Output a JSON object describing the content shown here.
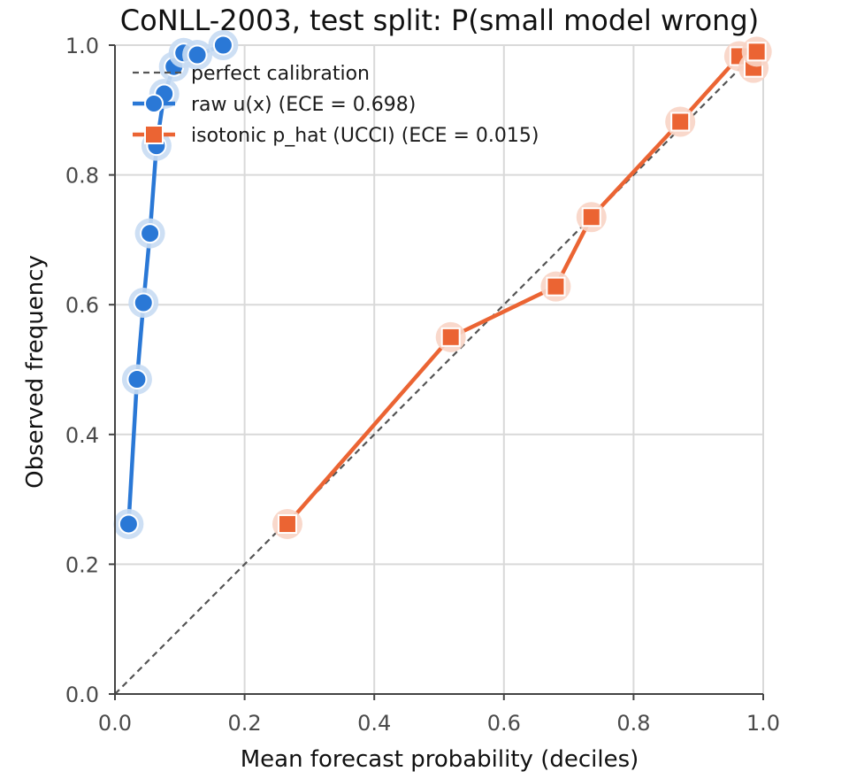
{
  "chart_data": {
    "type": "line",
    "title": "CoNLL-2003, test split: P(small model wrong)",
    "xlabel": "Mean forecast probability (deciles)",
    "ylabel": "Observed frequency",
    "xlim": [
      0,
      1
    ],
    "ylim": [
      0,
      1
    ],
    "xticks": [
      "0.0",
      "0.2",
      "0.4",
      "0.6",
      "0.8",
      "1.0"
    ],
    "yticks": [
      "0.0",
      "0.2",
      "0.4",
      "0.6",
      "0.8",
      "1.0"
    ],
    "grid": true,
    "legend_position": "top-left",
    "reference": {
      "name": "perfect calibration",
      "x": [
        0,
        1
      ],
      "y": [
        0,
        1
      ],
      "color": "#555555"
    },
    "series": [
      {
        "name": "raw u(x) (ECE = 0.698)",
        "marker": "circle",
        "color": "#2a78d6",
        "x": [
          0.021,
          0.034,
          0.044,
          0.054,
          0.064,
          0.076,
          0.091,
          0.106,
          0.127,
          0.167
        ],
        "y": [
          0.262,
          0.485,
          0.603,
          0.71,
          0.845,
          0.925,
          0.967,
          0.988,
          0.985,
          1.0
        ]
      },
      {
        "name": "isotonic p_hat (UCCI) (ECE = 0.015)",
        "marker": "square",
        "color": "#eb6433",
        "x": [
          0.266,
          0.518,
          0.68,
          0.735,
          0.872,
          0.963,
          0.985,
          0.99
        ],
        "y": [
          0.262,
          0.55,
          0.628,
          0.735,
          0.882,
          0.983,
          0.965,
          0.99
        ]
      }
    ]
  }
}
